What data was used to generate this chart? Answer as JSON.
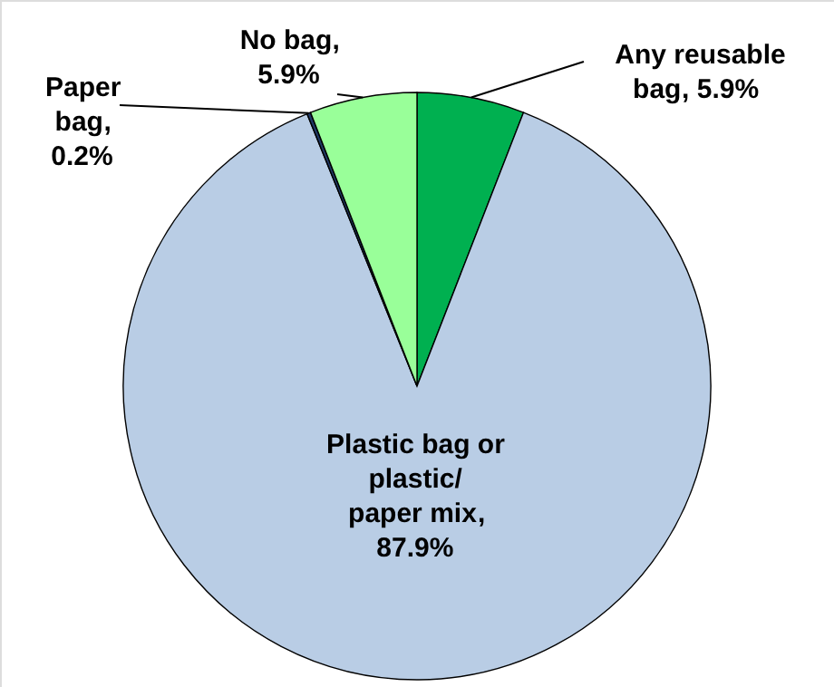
{
  "chart_data": {
    "type": "pie",
    "categories": [
      "Any reusable bag",
      "Plastic bag or plastic/ paper mix",
      "Paper bag",
      "No bag"
    ],
    "values": [
      5.9,
      87.9,
      0.2,
      5.9
    ],
    "colors": [
      "#00b050",
      "#b9cde5",
      "#1f3864",
      "#99ff99"
    ],
    "value_labels": [
      ",  5.9%",
      ", 87.9%",
      ", 0.2%",
      ", 5.9%"
    ]
  }
}
